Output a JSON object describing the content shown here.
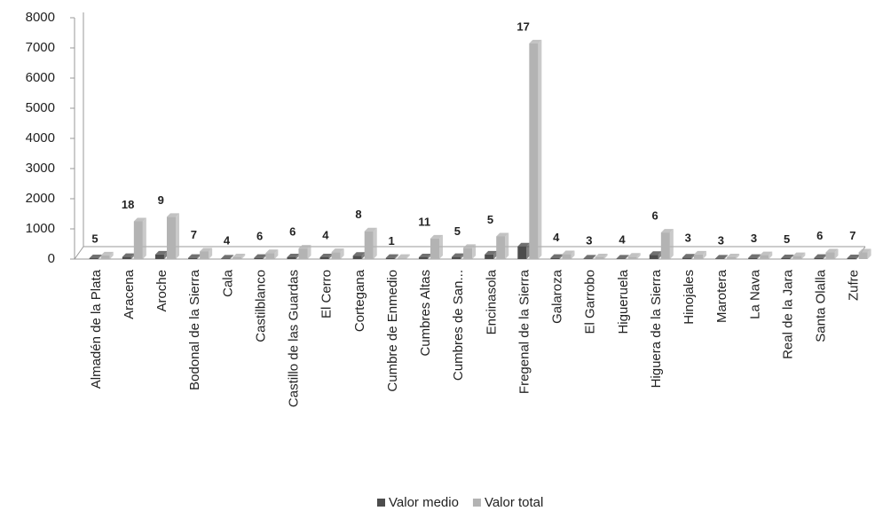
{
  "chart_data": {
    "type": "bar",
    "categories": [
      "Almadén de la Plata",
      "Aracena",
      "Aroche",
      "Bodonal de la Sierra",
      "Cala",
      "Castilblanco",
      "Castillo de las Guardas",
      "El Cerro",
      "Cortegana",
      "Cumbre de Enmedio",
      "Cumbres Altas",
      "Cumbres de San...",
      "Encinasola",
      "Fregenal de la Sierra",
      "Galaroza",
      "El Garrobo",
      "Higueruela",
      "Higuera de la Sierra",
      "Hinojales",
      "Marotera",
      "La Nava",
      "Real de la Jara",
      "Santa Olalla",
      "Zufre"
    ],
    "series": [
      {
        "name": "Valor medio",
        "color": "#4d4d4d",
        "values": [
          30,
          70,
          150,
          40,
          20,
          40,
          60,
          60,
          110,
          40,
          60,
          70,
          150,
          420,
          40,
          20,
          20,
          140,
          50,
          20,
          40,
          30,
          40,
          30
        ]
      },
      {
        "name": "Valor total",
        "color": "#b3b3b3",
        "values": [
          120,
          1250,
          1400,
          250,
          60,
          200,
          350,
          230,
          920,
          40,
          680,
          370,
          750,
          7150,
          160,
          60,
          80,
          880,
          150,
          60,
          130,
          100,
          220,
          220
        ]
      }
    ],
    "annotations": [
      5,
      18,
      9,
      7,
      4,
      6,
      6,
      4,
      8,
      1,
      11,
      5,
      5,
      17,
      4,
      3,
      4,
      6,
      3,
      3,
      3,
      5,
      6,
      7
    ],
    "ylim": [
      0,
      8000
    ],
    "yticks": [
      0,
      1000,
      2000,
      3000,
      4000,
      5000,
      6000,
      7000,
      8000
    ],
    "grid": false,
    "legend": "bottom"
  }
}
